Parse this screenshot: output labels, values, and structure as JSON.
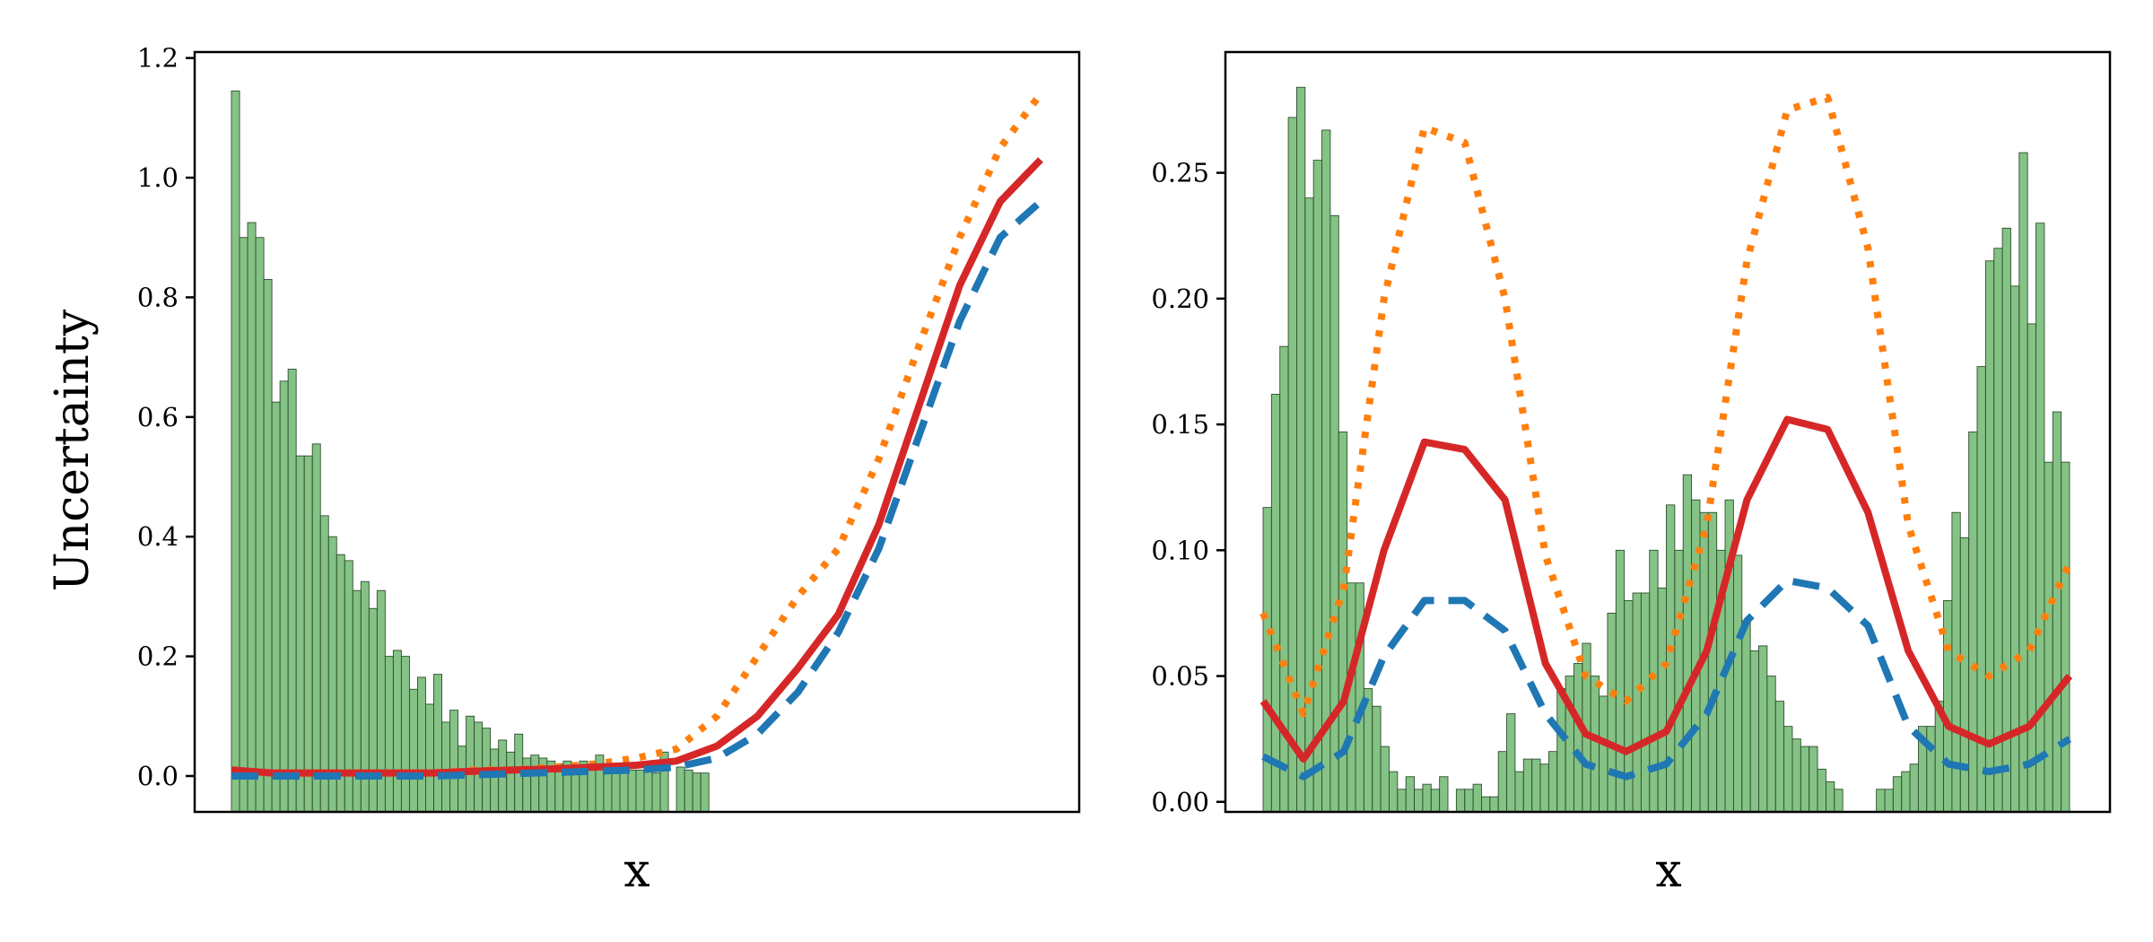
{
  "chart_data": [
    {
      "type": "line",
      "xlabel": "x",
      "ylabel": "Uncertainty",
      "ylim": [
        -0.06,
        1.21
      ],
      "yticks": [
        0.0,
        0.2,
        0.4,
        0.6,
        0.8,
        1.0,
        1.2
      ],
      "ytick_labels": [
        "0.0",
        "0.2",
        "0.4",
        "0.6",
        "0.8",
        "1.0",
        "1.2"
      ],
      "x": [
        0.0,
        0.05,
        0.1,
        0.15,
        0.2,
        0.25,
        0.3,
        0.35,
        0.4,
        0.45,
        0.5,
        0.55,
        0.6,
        0.65,
        0.7,
        0.75,
        0.8,
        0.85,
        0.9,
        0.95,
        1.0
      ],
      "series": [
        {
          "color": "#ff7f0e",
          "style": "dotted",
          "values": [
            0.01,
            0.005,
            0.005,
            0.005,
            0.005,
            0.005,
            0.01,
            0.01,
            0.015,
            0.02,
            0.03,
            0.045,
            0.1,
            0.2,
            0.3,
            0.38,
            0.53,
            0.72,
            0.9,
            1.05,
            1.14
          ]
        },
        {
          "color": "#d62728",
          "style": "solid",
          "values": [
            0.01,
            0.005,
            0.005,
            0.005,
            0.005,
            0.005,
            0.008,
            0.01,
            0.012,
            0.015,
            0.018,
            0.025,
            0.05,
            0.1,
            0.18,
            0.27,
            0.42,
            0.62,
            0.82,
            0.96,
            1.03
          ]
        },
        {
          "color": "#1f77b4",
          "style": "dashed",
          "values": [
            0.0,
            0.0,
            0.0,
            0.0,
            0.0,
            0.0,
            0.002,
            0.004,
            0.006,
            0.008,
            0.01,
            0.015,
            0.03,
            0.07,
            0.14,
            0.24,
            0.38,
            0.57,
            0.76,
            0.9,
            0.96
          ]
        }
      ],
      "histogram": {
        "color": "#5cae5c",
        "heights": [
          1.145,
          0.9,
          0.925,
          0.9,
          0.83,
          0.625,
          0.66,
          0.68,
          0.535,
          0.535,
          0.555,
          0.435,
          0.4,
          0.37,
          0.36,
          0.31,
          0.325,
          0.28,
          0.31,
          0.2,
          0.21,
          0.2,
          0.145,
          0.165,
          0.12,
          0.17,
          0.09,
          0.11,
          0.05,
          0.1,
          0.09,
          0.08,
          0.045,
          0.06,
          0.04,
          0.07,
          0.03,
          0.035,
          0.03,
          0.025,
          0.02,
          0.025,
          0.015,
          0.025,
          0.02,
          0.035,
          0.01,
          0.015,
          0.01,
          0.01,
          0.01,
          0.015,
          0.005,
          0.04,
          0.0,
          0.015,
          0.01,
          0.005,
          0.005,
          0.0,
          0.0,
          0.0,
          0.0,
          0.0,
          0.0,
          0.0,
          0.0,
          0.0,
          0.0,
          0.0,
          0.0,
          0.0,
          0.0,
          0.0,
          0.0,
          0.0,
          0.0,
          0.0,
          0.0,
          0.0,
          0.0,
          0.0,
          0.0,
          0.0,
          0.0,
          0.0,
          0.0,
          0.0,
          0.0,
          0.0,
          0.0,
          0.0,
          0.0,
          0.0,
          0.0,
          0.0,
          0.0,
          0.0,
          0.0,
          0.0
        ]
      }
    },
    {
      "type": "line",
      "xlabel": "x",
      "ylabel": "",
      "ylim": [
        -0.004,
        0.298
      ],
      "yticks": [
        0.0,
        0.05,
        0.1,
        0.15,
        0.2,
        0.25
      ],
      "ytick_labels": [
        "0.00",
        "0.05",
        "0.10",
        "0.15",
        "0.20",
        "0.25"
      ],
      "x": [
        0.0,
        0.05,
        0.1,
        0.15,
        0.2,
        0.25,
        0.3,
        0.35,
        0.4,
        0.45,
        0.5,
        0.55,
        0.6,
        0.65,
        0.7,
        0.75,
        0.8,
        0.85,
        0.9,
        0.95,
        1.0
      ],
      "series": [
        {
          "color": "#ff7f0e",
          "style": "dotted",
          "values": [
            0.075,
            0.035,
            0.085,
            0.2,
            0.268,
            0.262,
            0.2,
            0.098,
            0.05,
            0.04,
            0.055,
            0.11,
            0.215,
            0.275,
            0.28,
            0.22,
            0.11,
            0.06,
            0.05,
            0.06,
            0.095
          ]
        },
        {
          "color": "#d62728",
          "style": "solid",
          "values": [
            0.04,
            0.017,
            0.04,
            0.1,
            0.143,
            0.14,
            0.12,
            0.055,
            0.027,
            0.02,
            0.028,
            0.06,
            0.12,
            0.152,
            0.148,
            0.115,
            0.06,
            0.03,
            0.023,
            0.03,
            0.05
          ]
        },
        {
          "color": "#1f77b4",
          "style": "dashed",
          "values": [
            0.018,
            0.01,
            0.02,
            0.058,
            0.08,
            0.08,
            0.068,
            0.035,
            0.015,
            0.01,
            0.015,
            0.035,
            0.072,
            0.088,
            0.085,
            0.07,
            0.03,
            0.015,
            0.012,
            0.015,
            0.025
          ]
        }
      ],
      "histogram": {
        "color": "#5cae5c",
        "heights": [
          0.117,
          0.162,
          0.181,
          0.272,
          0.284,
          0.24,
          0.255,
          0.267,
          0.233,
          0.147,
          0.087,
          0.087,
          0.045,
          0.038,
          0.022,
          0.012,
          0.005,
          0.01,
          0.005,
          0.007,
          0.005,
          0.01,
          0.0,
          0.005,
          0.005,
          0.007,
          0.002,
          0.002,
          0.02,
          0.035,
          0.012,
          0.017,
          0.017,
          0.015,
          0.02,
          0.045,
          0.05,
          0.055,
          0.063,
          0.05,
          0.042,
          0.075,
          0.1,
          0.08,
          0.083,
          0.083,
          0.1,
          0.085,
          0.118,
          0.1,
          0.13,
          0.12,
          0.115,
          0.115,
          0.1,
          0.12,
          0.098,
          0.072,
          0.06,
          0.062,
          0.05,
          0.04,
          0.03,
          0.025,
          0.022,
          0.022,
          0.013,
          0.008,
          0.005,
          0.0,
          0.0,
          0.0,
          0.0,
          0.005,
          0.005,
          0.01,
          0.012,
          0.015,
          0.03,
          0.03,
          0.04,
          0.08,
          0.115,
          0.105,
          0.147,
          0.173,
          0.215,
          0.22,
          0.228,
          0.205,
          0.258,
          0.19,
          0.23,
          0.135,
          0.155,
          0.135
        ]
      }
    }
  ]
}
